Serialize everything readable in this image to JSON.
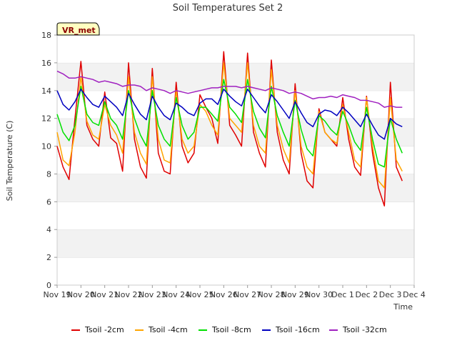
{
  "chart_data": {
    "type": "line",
    "title": "Soil Temperatures Set 2",
    "xlabel": "Time",
    "ylabel": "Soil Temperature (C)",
    "ylim": [
      0,
      18
    ],
    "yticks": [
      0,
      2,
      4,
      6,
      8,
      10,
      12,
      14,
      16,
      18
    ],
    "x_tick_labels": [
      "Nov 19",
      "Nov 20",
      "Nov 21",
      "Nov 22",
      "Nov 23",
      "Nov 24",
      "Nov 25",
      "Nov 26",
      "Nov 27",
      "Nov 28",
      "Nov 29",
      "Nov 30",
      "Dec 1",
      "Dec 2",
      "Dec 3",
      "Dec 4"
    ],
    "grid": "horizontal bands",
    "legend_position": "bottom",
    "badge": "VR_met",
    "x_days": [
      0.0,
      0.25,
      0.5,
      0.75,
      1.0,
      1.25,
      1.5,
      1.75,
      2.0,
      2.25,
      2.5,
      2.75,
      3.0,
      3.25,
      3.5,
      3.75,
      4.0,
      4.25,
      4.5,
      4.75,
      5.0,
      5.25,
      5.5,
      5.75,
      6.0,
      6.25,
      6.5,
      6.75,
      7.0,
      7.25,
      7.5,
      7.75,
      8.0,
      8.25,
      8.5,
      8.75,
      9.0,
      9.25,
      9.5,
      9.75,
      10.0,
      10.25,
      10.5,
      10.75,
      11.0,
      11.25,
      11.5,
      11.75,
      12.0,
      12.25,
      12.5,
      12.75,
      13.0,
      13.25,
      13.5,
      13.75,
      14.0,
      14.25,
      14.5
    ],
    "series": [
      {
        "name": "Tsoil -2cm",
        "color": "#e00000",
        "values": [
          10.0,
          8.5,
          7.6,
          12.0,
          16.1,
          11.5,
          10.5,
          10.0,
          13.9,
          10.6,
          10.2,
          8.2,
          16.0,
          10.5,
          8.5,
          7.7,
          15.6,
          9.5,
          8.2,
          8.0,
          14.6,
          10.0,
          8.8,
          9.5,
          13.7,
          12.8,
          12.0,
          10.2,
          16.8,
          11.5,
          10.8,
          10.0,
          16.7,
          11.0,
          9.5,
          8.5,
          16.2,
          11.0,
          9.0,
          8.0,
          14.5,
          9.5,
          7.5,
          7.0,
          12.7,
          11.0,
          10.5,
          10.0,
          13.5,
          10.5,
          8.5,
          7.9,
          13.6,
          9.5,
          7.0,
          5.7,
          14.6,
          8.5,
          7.5
        ]
      },
      {
        "name": "Tsoil -4cm",
        "color": "#ffa500",
        "values": [
          11.0,
          9.0,
          8.6,
          11.0,
          15.0,
          11.8,
          10.8,
          10.5,
          13.0,
          11.5,
          10.8,
          9.5,
          15.0,
          11.0,
          9.5,
          8.7,
          15.0,
          10.5,
          9.0,
          8.8,
          14.0,
          10.5,
          9.5,
          10.0,
          13.0,
          12.5,
          11.5,
          10.8,
          16.0,
          12.0,
          11.5,
          11.0,
          16.0,
          11.5,
          10.0,
          9.5,
          15.5,
          11.5,
          9.8,
          8.8,
          14.0,
          10.0,
          8.5,
          8.0,
          12.5,
          11.0,
          10.5,
          10.2,
          13.0,
          11.0,
          9.0,
          8.5,
          13.5,
          10.0,
          7.5,
          7.0,
          13.5,
          9.0,
          8.2
        ]
      },
      {
        "name": "Tsoil -8cm",
        "color": "#00e000",
        "values": [
          12.3,
          11.0,
          10.4,
          11.5,
          14.3,
          12.3,
          11.7,
          11.5,
          13.2,
          12.0,
          11.5,
          10.5,
          14.0,
          12.0,
          10.8,
          10.0,
          14.0,
          11.5,
          10.5,
          10.0,
          13.5,
          11.5,
          10.5,
          11.0,
          12.8,
          12.8,
          12.3,
          11.8,
          14.8,
          12.8,
          12.3,
          11.7,
          14.8,
          12.5,
          11.3,
          10.6,
          14.3,
          12.2,
          11.0,
          10.0,
          13.3,
          11.2,
          9.8,
          9.3,
          12.2,
          11.8,
          11.2,
          10.8,
          12.5,
          11.5,
          10.3,
          9.7,
          12.8,
          10.5,
          8.7,
          8.5,
          12.0,
          10.5,
          9.5
        ]
      },
      {
        "name": "Tsoil -16cm",
        "color": "#0000c0",
        "values": [
          14.0,
          13.0,
          12.6,
          13.2,
          14.1,
          13.5,
          13.0,
          12.8,
          13.6,
          13.2,
          12.8,
          12.2,
          13.8,
          13.0,
          12.3,
          11.9,
          13.6,
          12.8,
          12.2,
          11.9,
          13.1,
          12.8,
          12.4,
          12.2,
          13.1,
          13.4,
          13.4,
          13.0,
          14.1,
          13.6,
          13.2,
          12.9,
          14.1,
          13.5,
          12.9,
          12.4,
          13.7,
          13.2,
          12.6,
          12.0,
          13.2,
          12.4,
          11.7,
          11.4,
          12.3,
          12.6,
          12.5,
          12.2,
          12.8,
          12.4,
          11.9,
          11.4,
          12.3,
          11.5,
          10.8,
          10.5,
          12.0,
          11.6,
          11.4
        ]
      },
      {
        "name": "Tsoil -32cm",
        "color": "#a020c0",
        "values": [
          15.4,
          15.2,
          14.9,
          14.9,
          15.0,
          14.9,
          14.8,
          14.6,
          14.7,
          14.6,
          14.5,
          14.3,
          14.4,
          14.4,
          14.3,
          14.0,
          14.2,
          14.1,
          14.0,
          13.8,
          14.0,
          13.9,
          13.8,
          13.9,
          14.0,
          14.1,
          14.2,
          14.2,
          14.3,
          14.3,
          14.3,
          14.2,
          14.3,
          14.2,
          14.1,
          14.0,
          14.2,
          14.1,
          14.0,
          13.8,
          13.9,
          13.8,
          13.6,
          13.4,
          13.5,
          13.5,
          13.6,
          13.5,
          13.7,
          13.6,
          13.5,
          13.3,
          13.3,
          13.2,
          13.1,
          12.8,
          12.9,
          12.8,
          12.8
        ]
      }
    ]
  }
}
